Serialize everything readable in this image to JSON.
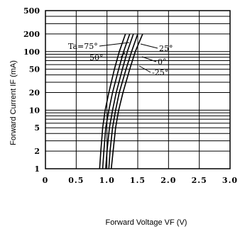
{
  "chart_data": {
    "type": "line",
    "title": "",
    "xlabel": "Forward Voltage VF (V)",
    "ylabel": "Forward Current IF (mA)",
    "xlim": [
      0,
      3.0
    ],
    "ylim": [
      1,
      500
    ],
    "y_scale": "log",
    "grid": true,
    "x_ticks": [
      "0",
      "0.5",
      "1.0",
      "1.5",
      "2.0",
      "2.5",
      "3.0"
    ],
    "y_ticks": [
      "1",
      "2",
      "5",
      "10",
      "20",
      "50",
      "100",
      "200",
      "500"
    ],
    "y_grid_values": [
      1,
      2,
      3,
      4,
      5,
      6,
      7,
      8,
      9,
      10,
      20,
      30,
      40,
      50,
      60,
      70,
      80,
      90,
      100,
      200,
      300,
      400,
      500
    ],
    "series": [
      {
        "name": "Ta=75°",
        "points": [
          [
            0.88,
            1
          ],
          [
            0.9,
            2
          ],
          [
            0.93,
            5
          ],
          [
            0.97,
            10
          ],
          [
            1.03,
            20
          ],
          [
            1.12,
            50
          ],
          [
            1.2,
            100
          ],
          [
            1.3,
            200
          ]
        ]
      },
      {
        "name": "50°",
        "points": [
          [
            0.93,
            1
          ],
          [
            0.95,
            2
          ],
          [
            0.98,
            5
          ],
          [
            1.03,
            10
          ],
          [
            1.09,
            20
          ],
          [
            1.19,
            50
          ],
          [
            1.27,
            100
          ],
          [
            1.37,
            200
          ]
        ]
      },
      {
        "name": "25°",
        "points": [
          [
            0.98,
            1
          ],
          [
            1.0,
            2
          ],
          [
            1.04,
            5
          ],
          [
            1.09,
            10
          ],
          [
            1.15,
            20
          ],
          [
            1.25,
            50
          ],
          [
            1.33,
            100
          ],
          [
            1.43,
            200
          ]
        ]
      },
      {
        "name": "0°",
        "points": [
          [
            1.03,
            1
          ],
          [
            1.05,
            2
          ],
          [
            1.09,
            5
          ],
          [
            1.14,
            10
          ],
          [
            1.2,
            20
          ],
          [
            1.31,
            50
          ],
          [
            1.4,
            100
          ],
          [
            1.5,
            200
          ]
        ]
      },
      {
        "name": "-25°",
        "points": [
          [
            1.07,
            1
          ],
          [
            1.1,
            2
          ],
          [
            1.14,
            5
          ],
          [
            1.19,
            10
          ],
          [
            1.26,
            20
          ],
          [
            1.37,
            50
          ],
          [
            1.46,
            100
          ],
          [
            1.58,
            200
          ]
        ]
      }
    ],
    "annotations": [
      "Ta=75°",
      "50°",
      "25°",
      "0°",
      "-25°"
    ]
  }
}
